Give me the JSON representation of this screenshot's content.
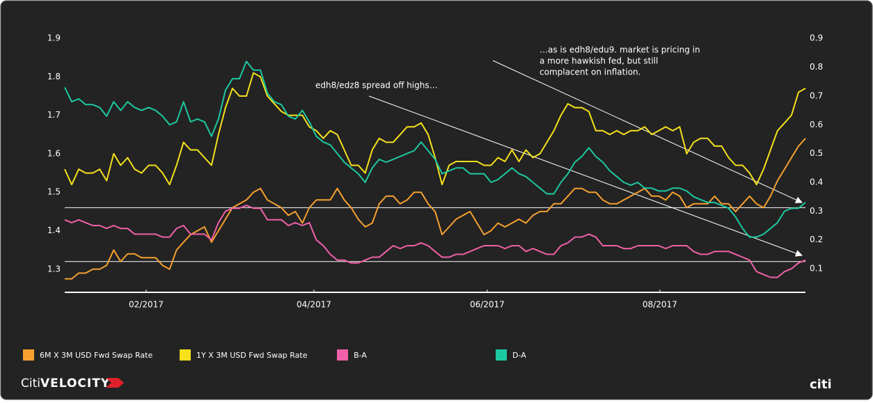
{
  "chart_data": {
    "type": "line",
    "annotations": [
      "edh8/edz8 spread off highs…",
      "…as is edh8/edu9. market is pricing in",
      "a more hawkish fed, but still",
      "complacent on inflation."
    ],
    "branding": {
      "left": [
        "Citi",
        "VELOCITY"
      ],
      "right": "citi"
    },
    "x": [
      0,
      1,
      2,
      3,
      4,
      5,
      6,
      7,
      8,
      9,
      10,
      11,
      12,
      13,
      14,
      15,
      16,
      17,
      18,
      19,
      20,
      21,
      22,
      23,
      24,
      25,
      26,
      27,
      28,
      29,
      30,
      31,
      32,
      33,
      34,
      35,
      36,
      37,
      38,
      39,
      40,
      41,
      42,
      43,
      44,
      45,
      46,
      47,
      48,
      49,
      50,
      51,
      52,
      53,
      54,
      55,
      56,
      57,
      58,
      59,
      60,
      61,
      62,
      63,
      64,
      65,
      66,
      67,
      68,
      69,
      70,
      71,
      72,
      73,
      74,
      75,
      76,
      77,
      78,
      79,
      80,
      81,
      82,
      83,
      84,
      85,
      86,
      87,
      88,
      89,
      90,
      91,
      92,
      93,
      94,
      95,
      96,
      97,
      98,
      99,
      100,
      101,
      102,
      103,
      104,
      105,
      106
    ],
    "xlim": [
      0,
      106
    ],
    "xticks": [
      {
        "value": 11.65,
        "label": "02/2017"
      },
      {
        "value": 35.66,
        "label": "04/2017"
      },
      {
        "value": 60.46,
        "label": "06/2017"
      },
      {
        "value": 85.16,
        "label": "08/2017"
      }
    ],
    "ylim": [
      1.24,
      1.92
    ],
    "yticks": [
      1.3,
      1.4,
      1.5,
      1.6,
      1.7,
      1.8,
      1.9
    ],
    "y2lim": [
      0.018,
      0.927
    ],
    "y2ticks": [
      0.1,
      0.2,
      0.3,
      0.4,
      0.5,
      0.6,
      0.7,
      0.8,
      0.9
    ],
    "reference_lines": [
      1.46,
      1.32
    ],
    "series": [
      {
        "name": "6M X 3M USD Fwd Swap Rate",
        "color": "#f5a030",
        "values": [
          1.275,
          1.275,
          1.29,
          1.29,
          1.3,
          1.3,
          1.31,
          1.35,
          1.32,
          1.34,
          1.34,
          1.33,
          1.33,
          1.33,
          1.31,
          1.3,
          1.35,
          1.37,
          1.39,
          1.4,
          1.41,
          1.37,
          1.4,
          1.43,
          1.46,
          1.47,
          1.48,
          1.5,
          1.51,
          1.48,
          1.47,
          1.46,
          1.44,
          1.45,
          1.42,
          1.46,
          1.48,
          1.48,
          1.48,
          1.51,
          1.48,
          1.46,
          1.43,
          1.41,
          1.42,
          1.47,
          1.49,
          1.49,
          1.47,
          1.48,
          1.5,
          1.5,
          1.47,
          1.45,
          1.39,
          1.41,
          1.43,
          1.44,
          1.45,
          1.42,
          1.39,
          1.4,
          1.42,
          1.41,
          1.42,
          1.43,
          1.42,
          1.44,
          1.45,
          1.45,
          1.47,
          1.47,
          1.49,
          1.51,
          1.51,
          1.5,
          1.5,
          1.48,
          1.47,
          1.47,
          1.48,
          1.49,
          1.5,
          1.51,
          1.49,
          1.49,
          1.48,
          1.5,
          1.49,
          1.46,
          1.47,
          1.47,
          1.47,
          1.49,
          1.47,
          1.47,
          1.45,
          1.47,
          1.49,
          1.47,
          1.46,
          1.49,
          1.53,
          1.56,
          1.59,
          1.62,
          1.64
        ]
      },
      {
        "name": "1Y X 3M USD Fwd Swap Rate",
        "color": "#f5e11c",
        "values": [
          1.56,
          1.52,
          1.56,
          1.55,
          1.55,
          1.56,
          1.53,
          1.6,
          1.57,
          1.59,
          1.56,
          1.55,
          1.57,
          1.57,
          1.55,
          1.52,
          1.57,
          1.63,
          1.61,
          1.61,
          1.59,
          1.57,
          1.65,
          1.72,
          1.77,
          1.75,
          1.75,
          1.81,
          1.8,
          1.75,
          1.73,
          1.71,
          1.7,
          1.7,
          1.7,
          1.67,
          1.66,
          1.64,
          1.66,
          1.65,
          1.61,
          1.57,
          1.57,
          1.55,
          1.61,
          1.64,
          1.63,
          1.63,
          1.65,
          1.67,
          1.67,
          1.68,
          1.65,
          1.59,
          1.52,
          1.57,
          1.58,
          1.58,
          1.58,
          1.58,
          1.57,
          1.57,
          1.59,
          1.58,
          1.61,
          1.58,
          1.61,
          1.59,
          1.6,
          1.63,
          1.66,
          1.7,
          1.73,
          1.72,
          1.72,
          1.71,
          1.66,
          1.66,
          1.65,
          1.66,
          1.65,
          1.66,
          1.66,
          1.67,
          1.65,
          1.66,
          1.67,
          1.66,
          1.67,
          1.6,
          1.63,
          1.64,
          1.64,
          1.62,
          1.62,
          1.59,
          1.57,
          1.57,
          1.55,
          1.52,
          1.56,
          1.61,
          1.66,
          1.68,
          1.7,
          1.76,
          1.77
        ]
      },
      {
        "name": "B-A",
        "color": "#f060a8",
        "axis": "y2",
        "values": [
          0.27,
          0.26,
          0.27,
          0.26,
          0.25,
          0.25,
          0.24,
          0.25,
          0.24,
          0.24,
          0.22,
          0.22,
          0.22,
          0.22,
          0.21,
          0.21,
          0.24,
          0.25,
          0.22,
          0.22,
          0.22,
          0.2,
          0.26,
          0.3,
          0.31,
          0.31,
          0.32,
          0.31,
          0.31,
          0.27,
          0.27,
          0.27,
          0.25,
          0.26,
          0.25,
          0.26,
          0.2,
          0.18,
          0.15,
          0.13,
          0.13,
          0.12,
          0.12,
          0.13,
          0.14,
          0.14,
          0.16,
          0.18,
          0.17,
          0.18,
          0.18,
          0.19,
          0.18,
          0.16,
          0.14,
          0.14,
          0.15,
          0.15,
          0.16,
          0.17,
          0.18,
          0.18,
          0.18,
          0.17,
          0.18,
          0.18,
          0.16,
          0.17,
          0.16,
          0.15,
          0.15,
          0.18,
          0.19,
          0.21,
          0.21,
          0.22,
          0.21,
          0.18,
          0.18,
          0.18,
          0.17,
          0.17,
          0.18,
          0.18,
          0.18,
          0.18,
          0.17,
          0.18,
          0.18,
          0.18,
          0.16,
          0.15,
          0.15,
          0.16,
          0.16,
          0.16,
          0.15,
          0.14,
          0.13,
          0.09,
          0.08,
          0.07,
          0.07,
          0.09,
          0.1,
          0.12,
          0.13
        ]
      },
      {
        "name": "D-A",
        "color": "#1dc9a0",
        "axis": "y2",
        "values": [
          0.73,
          0.68,
          0.69,
          0.67,
          0.67,
          0.66,
          0.63,
          0.68,
          0.65,
          0.68,
          0.66,
          0.65,
          0.66,
          0.65,
          0.63,
          0.6,
          0.61,
          0.68,
          0.61,
          0.62,
          0.61,
          0.56,
          0.62,
          0.72,
          0.76,
          0.76,
          0.82,
          0.79,
          0.79,
          0.71,
          0.68,
          0.67,
          0.63,
          0.62,
          0.65,
          0.61,
          0.56,
          0.54,
          0.53,
          0.5,
          0.47,
          0.45,
          0.43,
          0.4,
          0.45,
          0.48,
          0.47,
          0.48,
          0.49,
          0.5,
          0.51,
          0.54,
          0.51,
          0.48,
          0.43,
          0.44,
          0.45,
          0.45,
          0.43,
          0.43,
          0.43,
          0.4,
          0.41,
          0.43,
          0.45,
          0.43,
          0.42,
          0.4,
          0.38,
          0.36,
          0.36,
          0.4,
          0.43,
          0.47,
          0.49,
          0.52,
          0.49,
          0.47,
          0.44,
          0.42,
          0.4,
          0.39,
          0.4,
          0.38,
          0.38,
          0.37,
          0.37,
          0.38,
          0.38,
          0.37,
          0.35,
          0.34,
          0.33,
          0.33,
          0.32,
          0.31,
          0.28,
          0.24,
          0.21,
          0.21,
          0.22,
          0.24,
          0.26,
          0.3,
          0.31,
          0.31,
          0.33
        ]
      }
    ]
  }
}
